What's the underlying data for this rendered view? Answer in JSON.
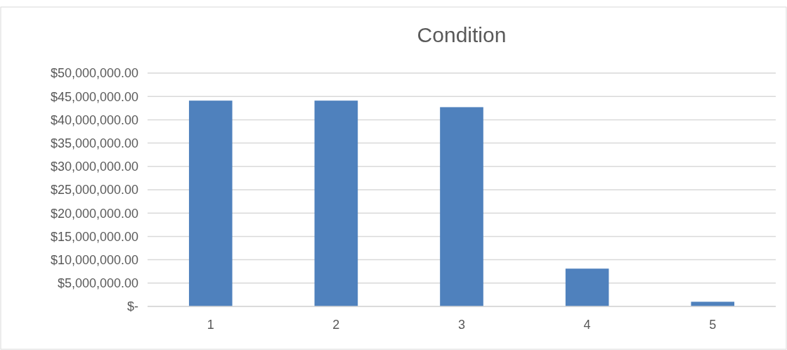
{
  "chart_data": {
    "type": "bar",
    "title": "Condition",
    "categories": [
      "1",
      "2",
      "3",
      "4",
      "5"
    ],
    "values": [
      44100000,
      44100000,
      42700000,
      8100000,
      1000000
    ],
    "color": "#4f81bd",
    "ylim": [
      0,
      50000000
    ],
    "yticks": [
      {
        "value": 0,
        "label": "$-"
      },
      {
        "value": 5000000,
        "label": "$5,000,000.00"
      },
      {
        "value": 10000000,
        "label": "$10,000,000.00"
      },
      {
        "value": 15000000,
        "label": "$15,000,000.00"
      },
      {
        "value": 20000000,
        "label": "$20,000,000.00"
      },
      {
        "value": 25000000,
        "label": "$25,000,000.00"
      },
      {
        "value": 30000000,
        "label": "$30,000,000.00"
      },
      {
        "value": 35000000,
        "label": "$35,000,000.00"
      },
      {
        "value": 40000000,
        "label": "$40,000,000.00"
      },
      {
        "value": 45000000,
        "label": "$45,000,000.00"
      },
      {
        "value": 50000000,
        "label": "$50,000,000.00"
      }
    ],
    "grid": "y"
  }
}
